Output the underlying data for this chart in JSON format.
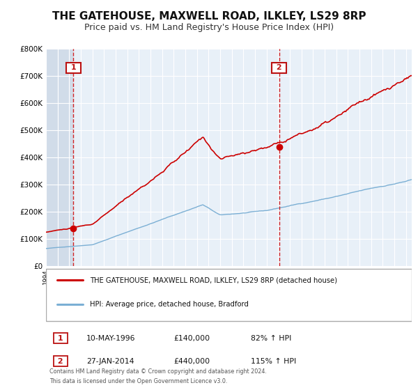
{
  "title": "THE GATEHOUSE, MAXWELL ROAD, ILKLEY, LS29 8RP",
  "subtitle": "Price paid vs. HM Land Registry's House Price Index (HPI)",
  "legend_line1": "THE GATEHOUSE, MAXWELL ROAD, ILKLEY, LS29 8RP (detached house)",
  "legend_line2": "HPI: Average price, detached house, Bradford",
  "footnote1": "Contains HM Land Registry data © Crown copyright and database right 2024.",
  "footnote2": "This data is licensed under the Open Government Licence v3.0.",
  "annotation1_date": "10-MAY-1996",
  "annotation1_price": "£140,000",
  "annotation1_hpi": "82% ↑ HPI",
  "annotation2_date": "27-JAN-2014",
  "annotation2_price": "£440,000",
  "annotation2_hpi": "115% ↑ HPI",
  "sale1_x": 1996.36,
  "sale1_y": 140000,
  "sale2_x": 2014.07,
  "sale2_y": 440000,
  "ylim": [
    0,
    800000
  ],
  "xlim": [
    1994,
    2025.5
  ],
  "red_color": "#cc0000",
  "blue_color": "#7bafd4",
  "plot_bg": "#e8f0f8",
  "grid_color": "#ffffff",
  "hatch_color": "#c8d4e4",
  "title_fontsize": 11,
  "subtitle_fontsize": 9
}
